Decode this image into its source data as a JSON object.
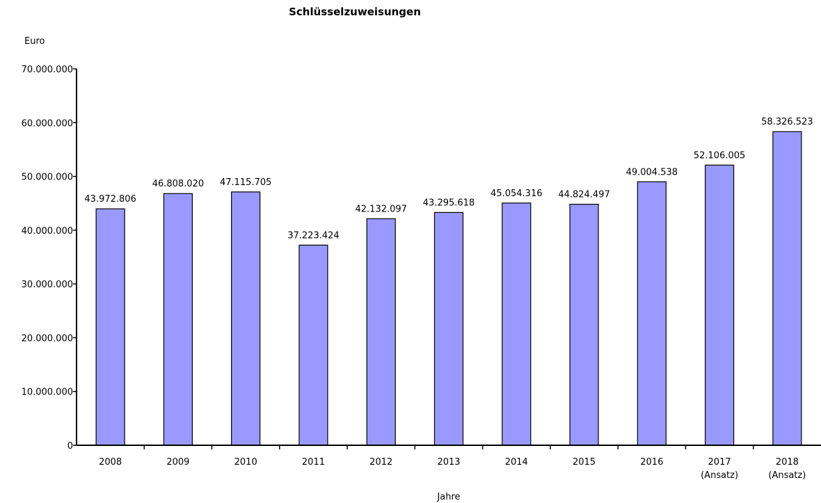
{
  "chart_data": {
    "type": "bar",
    "title": "Schlüsselzuweisungen",
    "ylabel": "Euro",
    "xlabel": "Jahre",
    "ylim": [
      0,
      70000000
    ],
    "yticks": [
      0,
      10000000,
      20000000,
      30000000,
      40000000,
      50000000,
      60000000,
      70000000
    ],
    "ytick_labels": [
      "0",
      "10.000.000",
      "20.000.000",
      "30.000.000",
      "40.000.000",
      "50.000.000",
      "60.000.000",
      "70.000.000"
    ],
    "categories": [
      [
        "2008"
      ],
      [
        "2009"
      ],
      [
        "2010"
      ],
      [
        "2011"
      ],
      [
        "2012"
      ],
      [
        "2013"
      ],
      [
        "2014"
      ],
      [
        "2015"
      ],
      [
        "2016"
      ],
      [
        "2017",
        "(Ansatz)"
      ],
      [
        "2018",
        "(Ansatz)"
      ]
    ],
    "values": [
      43972806,
      46808020,
      47115705,
      37223424,
      42132097,
      43295618,
      45054316,
      44824497,
      49004538,
      52106005,
      58326523
    ],
    "value_labels": [
      "43.972.806",
      "46.808.020",
      "47.115.705",
      "37.223.424",
      "42.132.097",
      "43.295.618",
      "45.054.316",
      "44.824.497",
      "49.004.538",
      "52.106.005",
      "58.326.523"
    ],
    "bar_color": "#9999ff",
    "grid": false,
    "legend": "none"
  }
}
